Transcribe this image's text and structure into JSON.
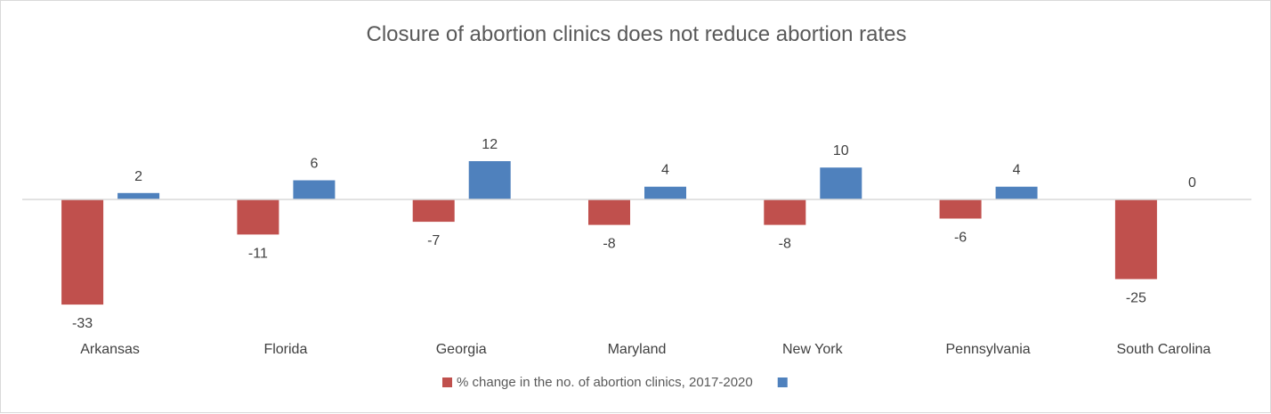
{
  "chart_data": {
    "type": "bar",
    "title": "Closure of abortion clinics does not reduce abortion rates",
    "categories": [
      "Arkansas",
      "Florida",
      "Georgia",
      "Maryland",
      "New York",
      "Pennsylvania",
      "South Carolina"
    ],
    "series": [
      {
        "name": "% change in the no. of abortion clinics, 2017-2020",
        "color": "#c0504d",
        "values": [
          -33,
          -11,
          -7,
          -8,
          -8,
          -6,
          -25
        ]
      },
      {
        "name": "",
        "color": "#4f81bd",
        "values": [
          2,
          6,
          12,
          4,
          10,
          4,
          0
        ]
      }
    ],
    "ylim": [
      -36,
      20
    ],
    "grid": false,
    "legend_position": "bottom",
    "data_labels": true
  }
}
